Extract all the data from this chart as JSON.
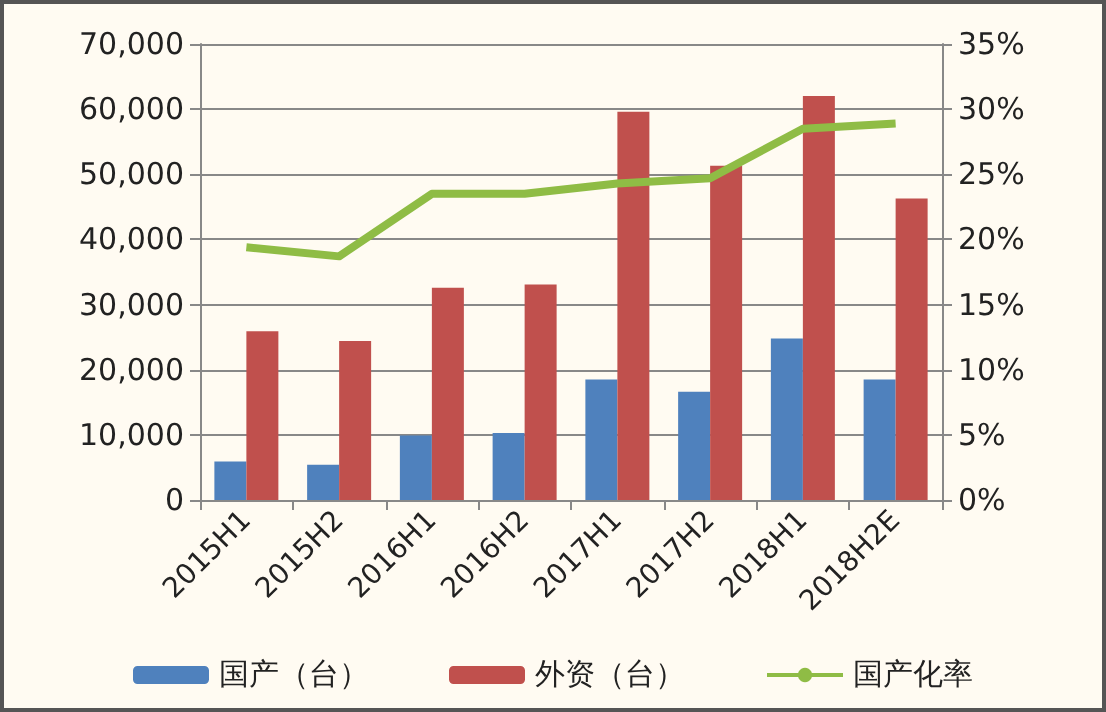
{
  "chart_data": {
    "type": "bar",
    "categories": [
      "2015H1",
      "2015H2",
      "2016H1",
      "2016H2",
      "2017H1",
      "2017H2",
      "2018H1",
      "2018H2E"
    ],
    "series": [
      {
        "name": "国产（台）",
        "color": "#4f81bd",
        "values": [
          5900,
          5400,
          9900,
          10300,
          18500,
          16600,
          24800,
          18500
        ]
      },
      {
        "name": "外资（台）",
        "color": "#c0504d",
        "values": [
          25900,
          24400,
          32600,
          33100,
          59600,
          51300,
          62000,
          46300
        ]
      },
      {
        "name": "国产化率",
        "type": "line",
        "axis": "y2",
        "color": "#8fbc45",
        "values": [
          19.4,
          18.7,
          23.5,
          23.5,
          24.3,
          24.7,
          28.5,
          28.9
        ]
      }
    ],
    "ylim": [
      0,
      70000
    ],
    "yticks": [
      0,
      {
        "value": 10000,
        "label": "10,000"
      },
      {
        "value": 20000,
        "label": "20,000"
      },
      {
        "value": 30000,
        "label": "30,000"
      },
      {
        "value": 40000,
        "label": "40,000"
      },
      {
        "value": 50000,
        "label": "50,000"
      },
      {
        "value": 60000,
        "label": "60,000"
      },
      {
        "value": 70000,
        "label": "70,000"
      }
    ],
    "y2lim": [
      0,
      35
    ],
    "y2ticks": [
      {
        "value": 0,
        "label": "0%"
      },
      {
        "value": 5,
        "label": "5%"
      },
      {
        "value": 10,
        "label": "10%"
      },
      {
        "value": 15,
        "label": "15%"
      },
      {
        "value": 20,
        "label": "20%"
      },
      {
        "value": 25,
        "label": "25%"
      },
      {
        "value": 30,
        "label": "30%"
      },
      {
        "value": 35,
        "label": "35%"
      }
    ],
    "grid": "y",
    "legend": "bottom",
    "marker": "none",
    "line_style": "solid"
  }
}
